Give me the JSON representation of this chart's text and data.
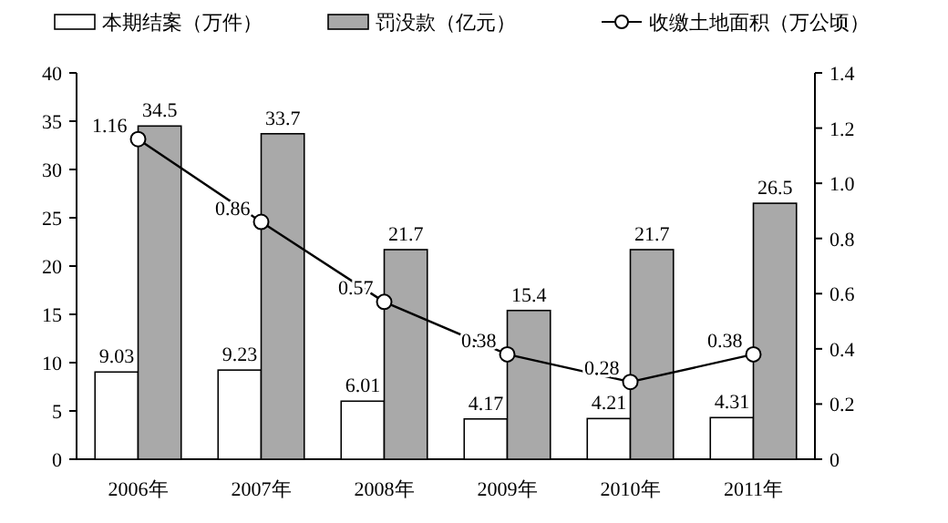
{
  "chart_data": {
    "type": "bar",
    "categories": [
      "2006年",
      "2007年",
      "2008年",
      "2009年",
      "2010年",
      "2011年"
    ],
    "series": [
      {
        "name": "本期结案（万件）",
        "color": "#ffffff",
        "values": [
          9.03,
          9.23,
          6.01,
          4.17,
          4.21,
          4.31
        ]
      },
      {
        "name": "罚没款（亿元）",
        "color": "#a9a9a9",
        "values": [
          34.5,
          33.7,
          21.7,
          15.4,
          21.7,
          26.5
        ]
      },
      {
        "name": "收缴土地面积（万公顷）",
        "type": "line",
        "axis": "y2",
        "color": "#000000",
        "values": [
          1.16,
          0.86,
          0.57,
          0.38,
          0.28,
          0.38
        ]
      }
    ],
    "ylim": [
      0,
      40
    ],
    "yticks": [
      0,
      5,
      10,
      15,
      20,
      25,
      30,
      35,
      40
    ],
    "y2lim": [
      0,
      1.4
    ],
    "y2ticks": [
      "0",
      "0.2",
      "0.4",
      "0.6",
      "0.8",
      "1.0",
      "1.2",
      "1.4"
    ],
    "data_labels": true,
    "legend": "top",
    "marker": "circle",
    "grid": false
  }
}
